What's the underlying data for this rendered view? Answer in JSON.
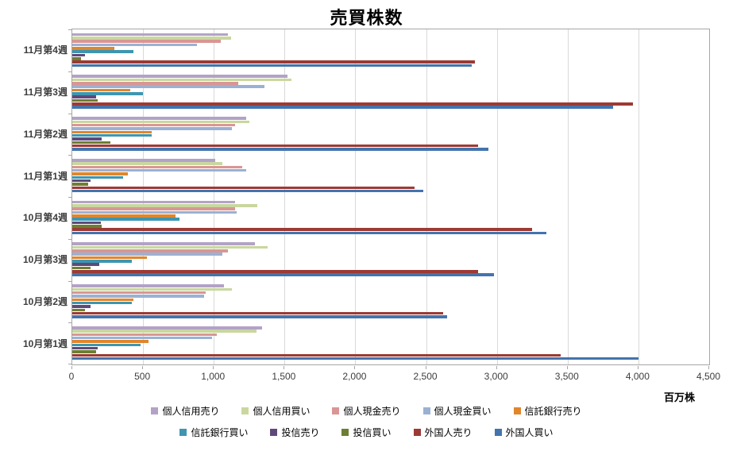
{
  "chart_data": {
    "type": "bar",
    "orientation": "horizontal",
    "title": "売買株数",
    "xlabel": "百万株",
    "grid": true,
    "legend_position": "bottom",
    "xlim": [
      0,
      4500
    ],
    "x_ticks": [
      0,
      500,
      1000,
      1500,
      2000,
      2500,
      3000,
      3500,
      4000,
      4500
    ],
    "x_tick_labels": [
      "0",
      "500",
      "1,000",
      "1,500",
      "2,000",
      "2,500",
      "3,000",
      "3,500",
      "4,000",
      "4,500"
    ],
    "categories": [
      "11月第4週",
      "11月第3週",
      "11月第2週",
      "11月第1週",
      "10月第4週",
      "10月第3週",
      "10月第2週",
      "10月第1週"
    ],
    "series": [
      {
        "id": "kojin-shinyo-uri",
        "name": "個人信用売り",
        "color": "#b3a2c7",
        "values": [
          1100,
          1520,
          1230,
          1010,
          1150,
          1290,
          1070,
          1340
        ]
      },
      {
        "id": "kojin-shinyo-kai",
        "name": "個人信用買い",
        "color": "#c9d79f",
        "values": [
          1120,
          1550,
          1250,
          1060,
          1310,
          1380,
          1130,
          1300
        ]
      },
      {
        "id": "kojin-genkin-uri",
        "name": "個人現金売り",
        "color": "#d99694",
        "values": [
          1050,
          1170,
          1150,
          1200,
          1150,
          1100,
          940,
          1020
        ]
      },
      {
        "id": "kojin-genkin-kai",
        "name": "個人現金買い",
        "color": "#9ab1d4",
        "values": [
          880,
          1360,
          1130,
          1230,
          1160,
          1060,
          930,
          990
        ]
      },
      {
        "id": "shintaku-ginko-uri",
        "name": "信託銀行売り",
        "color": "#e0862c",
        "values": [
          300,
          410,
          560,
          390,
          730,
          530,
          430,
          540
        ]
      },
      {
        "id": "shintaku-ginko-kai",
        "name": "信託銀行買い",
        "color": "#3e96b0",
        "values": [
          430,
          500,
          560,
          360,
          760,
          420,
          420,
          480
        ]
      },
      {
        "id": "toshin-uri",
        "name": "投信売り",
        "color": "#5f497a",
        "values": [
          90,
          170,
          210,
          130,
          200,
          190,
          130,
          180
        ]
      },
      {
        "id": "toshin-kai",
        "name": "投信買い",
        "color": "#6c7f32",
        "values": [
          60,
          180,
          270,
          110,
          210,
          130,
          90,
          170
        ]
      },
      {
        "id": "gaikokujin-uri",
        "name": "外国人売り",
        "color": "#9c3a35",
        "values": [
          2845,
          3960,
          2870,
          2420,
          3250,
          2870,
          2620,
          3450
        ]
      },
      {
        "id": "gaikokujin-kai",
        "name": "外国人買い",
        "color": "#4374ad",
        "values": [
          2820,
          3820,
          2940,
          2480,
          3350,
          2980,
          2650,
          4000
        ]
      }
    ]
  }
}
